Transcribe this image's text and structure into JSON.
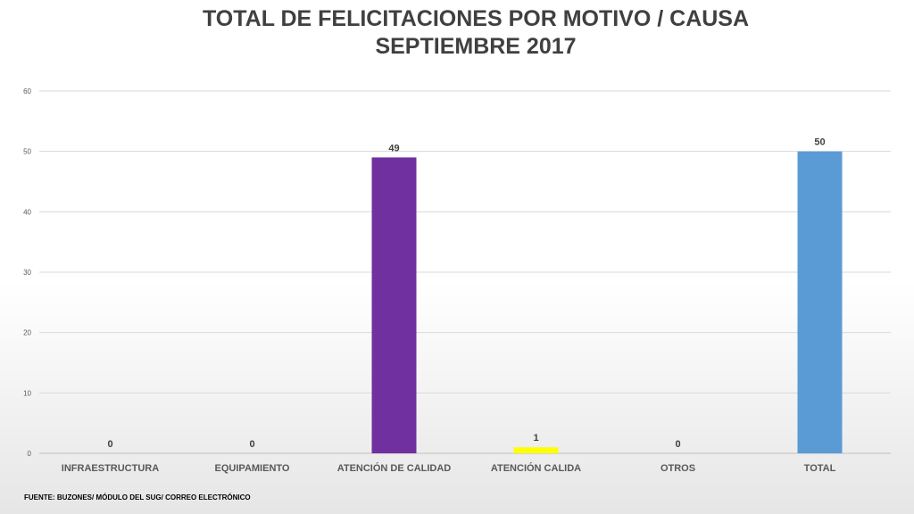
{
  "title_line1": "TOTAL DE FELICITACIONES POR MOTIVO / CAUSA",
  "title_line2": "SEPTIEMBRE 2017",
  "source_note": "FUENTE: BUZONES/ MÓDULO DEL SUG/ CORREO ELECTRÓNICO",
  "chart_data": {
    "type": "bar",
    "categories": [
      "INFRAESTRUCTURA",
      "EQUIPAMIENTO",
      "ATENCIÓN DE CALIDAD",
      "ATENCIÓN CALIDA",
      "OTROS",
      "TOTAL"
    ],
    "values": [
      0,
      0,
      49,
      1,
      0,
      50
    ],
    "data_labels": [
      "0",
      "0",
      "49",
      "1",
      "0",
      "50"
    ],
    "bar_colors": [
      "#7f7f7f",
      "#7f7f7f",
      "#7030a0",
      "#ffff00",
      "#7f7f7f",
      "#5b9bd5"
    ],
    "ylim": [
      0,
      60
    ],
    "yticks": [
      "0",
      "10",
      "20",
      "30",
      "40",
      "50",
      "60"
    ],
    "ytick_values": [
      0,
      10,
      20,
      30,
      40,
      50,
      60
    ],
    "grid": true,
    "legend": "none"
  }
}
